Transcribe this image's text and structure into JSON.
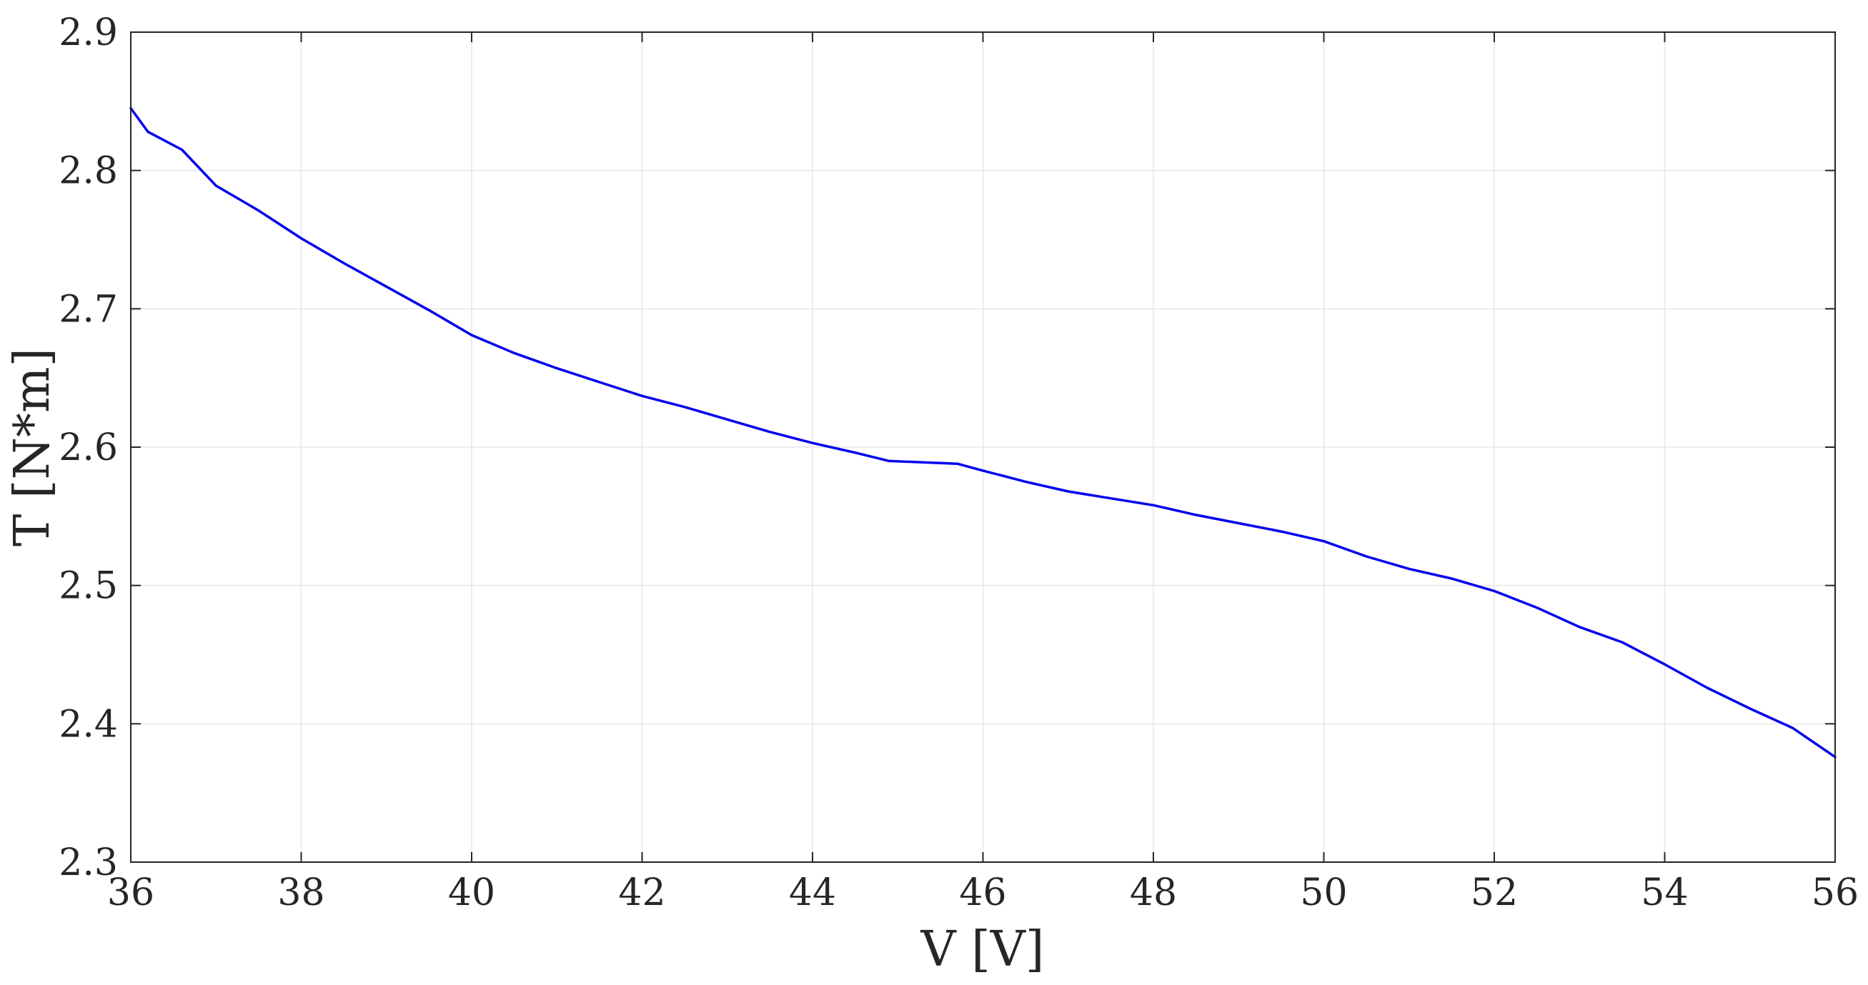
{
  "chart_data": {
    "type": "line",
    "xlabel": "V [V]",
    "ylabel": "T [N*m]",
    "xlim": [
      36,
      56
    ],
    "ylim": [
      2.3,
      2.9
    ],
    "xticks": [
      36,
      38,
      40,
      42,
      44,
      46,
      48,
      50,
      52,
      54,
      56
    ],
    "yticks": [
      2.3,
      2.4,
      2.5,
      2.6,
      2.7,
      2.8,
      2.9
    ],
    "xtick_labels": [
      "36",
      "38",
      "40",
      "42",
      "44",
      "46",
      "48",
      "50",
      "52",
      "54",
      "56"
    ],
    "ytick_labels": [
      "2.3",
      "2.4",
      "2.5",
      "2.6",
      "2.7",
      "2.8",
      "2.9"
    ],
    "grid": true,
    "line_color": "#0000ee",
    "series": [
      {
        "x": [
          36.0,
          36.2,
          36.6,
          37.0,
          37.5,
          38.0,
          38.5,
          39.0,
          39.5,
          40.0,
          40.5,
          41.0,
          41.5,
          42.0,
          42.5,
          43.0,
          43.5,
          44.0,
          44.5,
          44.9,
          45.7,
          46.0,
          46.5,
          47.0,
          47.5,
          48.0,
          48.5,
          49.0,
          49.5,
          50.0,
          50.5,
          51.0,
          51.5,
          52.0,
          52.5,
          53.0,
          53.5,
          54.0,
          54.5,
          55.0,
          55.5,
          56.0
        ],
        "y": [
          2.845,
          2.828,
          2.815,
          2.789,
          2.771,
          2.751,
          2.733,
          2.716,
          2.699,
          2.681,
          2.668,
          2.657,
          2.647,
          2.637,
          2.629,
          2.62,
          2.611,
          2.603,
          2.596,
          2.59,
          2.588,
          2.583,
          2.575,
          2.568,
          2.563,
          2.558,
          2.551,
          2.545,
          2.539,
          2.532,
          2.521,
          2.512,
          2.505,
          2.496,
          2.484,
          2.47,
          2.459,
          2.443,
          2.426,
          2.411,
          2.397,
          2.376
        ]
      }
    ]
  }
}
